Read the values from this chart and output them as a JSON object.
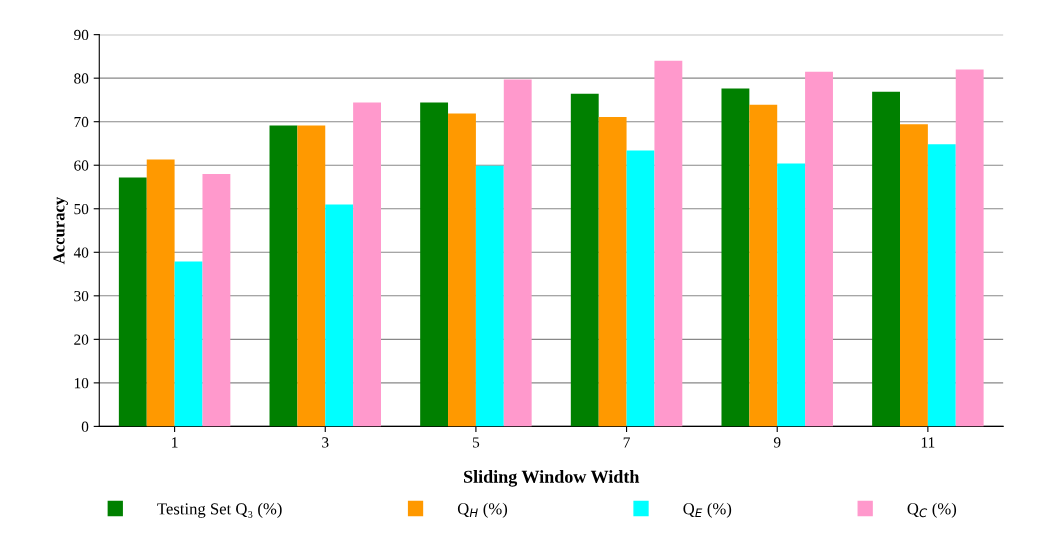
{
  "chart_data": {
    "type": "bar",
    "xlabel": "Sliding Window Width",
    "ylabel": "Accuracy",
    "categories": [
      "1",
      "3",
      "5",
      "7",
      "9",
      "11"
    ],
    "series": [
      {
        "name": "Testing Set Q₃ (%)",
        "color": "#008000",
        "values": [
          57.2,
          69.1,
          74.4,
          76.4,
          77.6,
          76.9
        ]
      },
      {
        "name": "Q$_{H}$ (%)",
        "color": "#ff9900",
        "values": [
          61.3,
          69.1,
          71.9,
          71.1,
          73.9,
          69.4
        ]
      },
      {
        "name": "Q$_{E}$ (%)",
        "color": "#00ffff",
        "values": [
          37.9,
          51.0,
          59.9,
          63.4,
          60.4,
          64.8
        ]
      },
      {
        "name": "Q$_{C}$ (%)",
        "color": "#ff99cc",
        "values": [
          58.0,
          74.4,
          79.7,
          84.0,
          81.5,
          82.0
        ]
      }
    ],
    "ylim": [
      0,
      90
    ],
    "yticks": [
      0,
      10,
      20,
      30,
      40,
      50,
      60,
      70,
      80,
      90
    ],
    "grid": "y",
    "legend": "bottom",
    "marker": "square"
  }
}
